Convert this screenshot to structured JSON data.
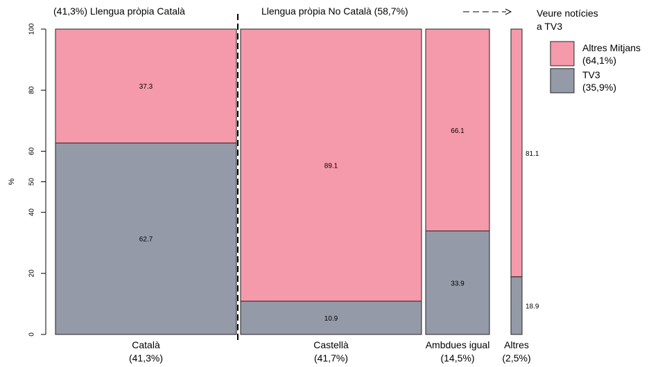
{
  "chart_data": {
    "type": "bar",
    "subtype": "mosaic (stacked 100% bars, widths proportional to group share)",
    "groups": [
      {
        "label": "Català",
        "share_label": "(41,3%)",
        "share": 41.3,
        "values": {
          "TV3": 62.7,
          "Altres Mitjans": 37.3
        },
        "value_labels": {
          "TV3": "62.7",
          "Altres Mitjans": "37.3"
        }
      },
      {
        "label": "Castellà",
        "share_label": "(41,7%)",
        "share": 41.7,
        "values": {
          "TV3": 10.9,
          "Altres Mitjans": 89.1
        },
        "value_labels": {
          "TV3": "10.9",
          "Altres Mitjans": "89.1"
        }
      },
      {
        "label": "Ambdues igual",
        "share_label": "(14,5%)",
        "share": 14.5,
        "values": {
          "TV3": 33.9,
          "Altres Mitjans": 66.1
        },
        "value_labels": {
          "TV3": "33.9",
          "Altres Mitjans": "66.1"
        }
      },
      {
        "label": "Altres",
        "share_label": "(2,5%)",
        "share": 2.5,
        "values": {
          "TV3": 18.9,
          "Altres Mitjans": 81.1
        },
        "value_labels": {
          "TV3": "18.9",
          "Altres Mitjans": "81.1"
        }
      }
    ],
    "series": [
      {
        "name": "TV3",
        "share_label": "(35,9%)",
        "color": "#959aa8"
      },
      {
        "name": "Altres Mitjans",
        "share_label": "(64,1%)",
        "color": "#f59aaa"
      }
    ],
    "ylabel": "%",
    "ylim": [
      0,
      100
    ],
    "yticks": [
      0,
      20,
      40,
      50,
      60,
      80,
      100
    ],
    "header_left": "(41,3%) Llengua pròpia Català",
    "header_right": "Llengua pròpia No Català (58,7%)",
    "legend_title_line1": "Veure notícies",
    "legend_title_line2": "a TV3",
    "legend_position": "top-right",
    "grid": false
  }
}
